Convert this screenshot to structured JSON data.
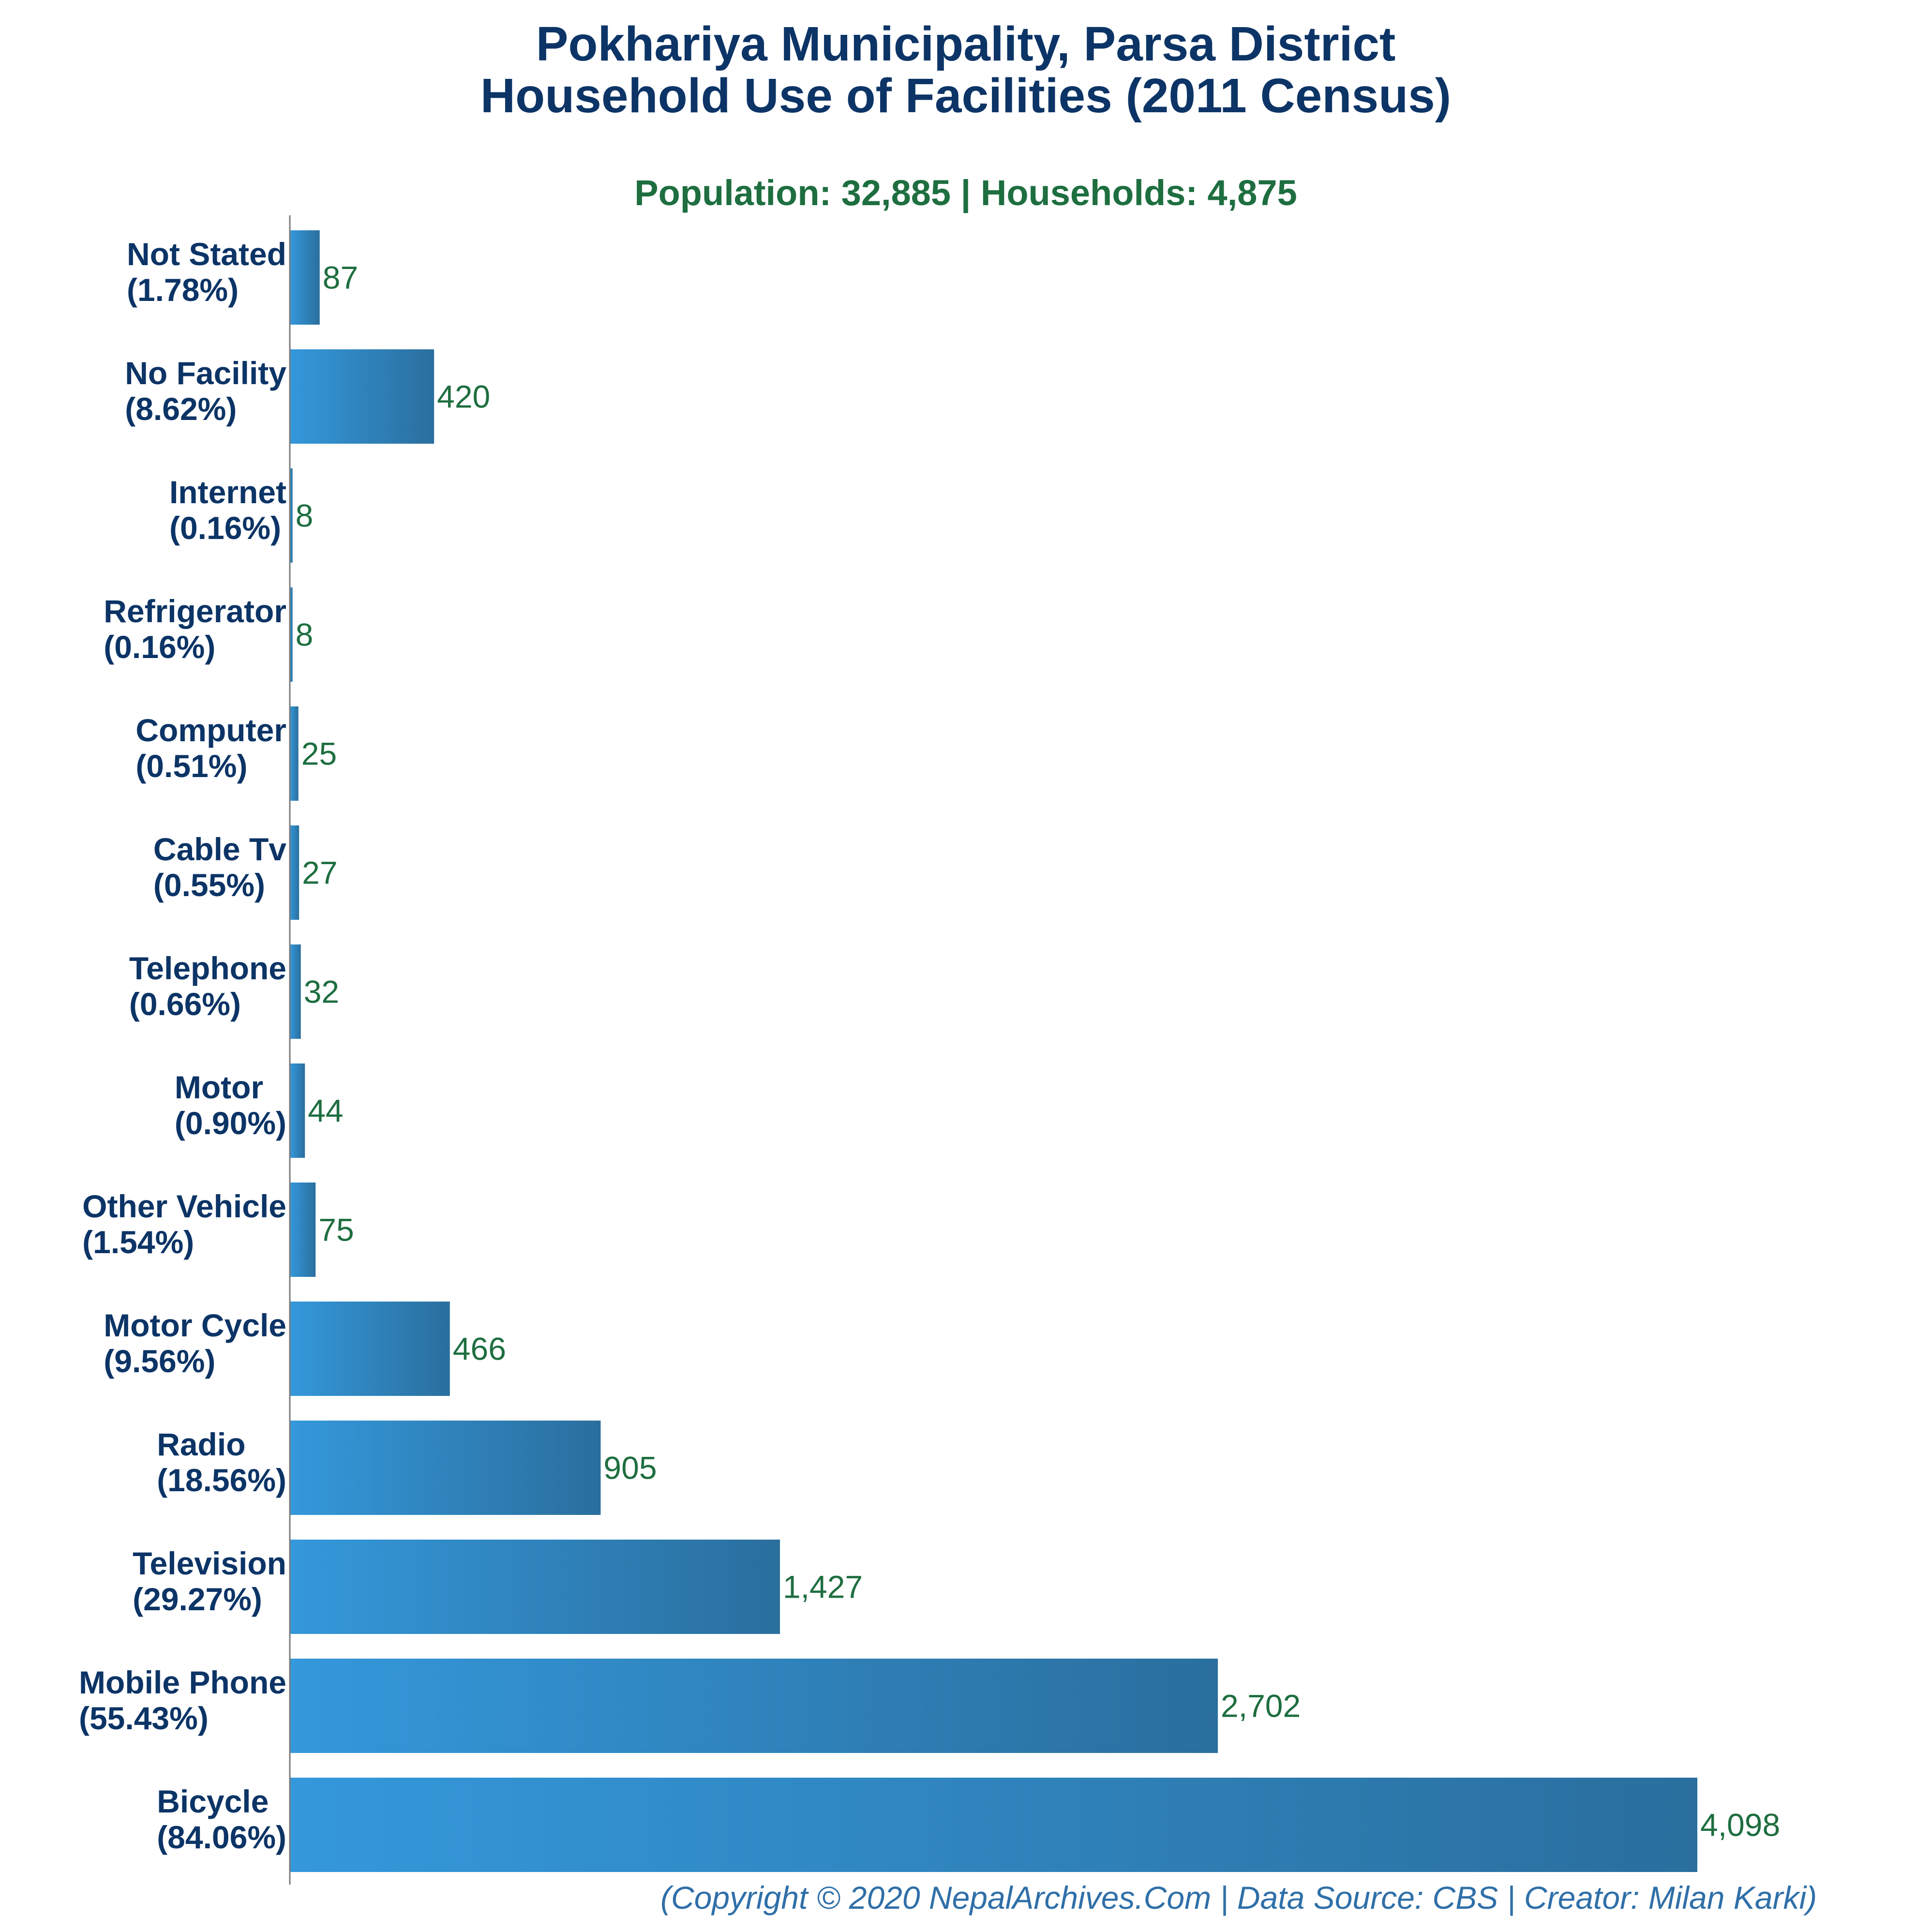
{
  "colors": {
    "title": "#0c3466",
    "subtitle": "#1e6e40",
    "value_labels": "#1e6e40",
    "category_labels": "#0c3466",
    "footer": "#2f6fa8",
    "bar_gradient_start": "#3498db",
    "bar_gradient_end": "#2a6f9e",
    "axis": "#7a7a7a"
  },
  "chart_data": {
    "type": "bar",
    "orientation": "horizontal",
    "title": [
      "Pokhariya Municipality, Parsa District",
      "Household Use of Facilities (2011 Census)"
    ],
    "subtitle": "Population: 32,885 | Households: 4,875",
    "categories": [
      {
        "name": "Not Stated",
        "pct": "(1.78%)"
      },
      {
        "name": "No Facility",
        "pct": "(8.62%)"
      },
      {
        "name": "Internet",
        "pct": "(0.16%)"
      },
      {
        "name": "Refrigerator",
        "pct": "(0.16%)"
      },
      {
        "name": "Computer",
        "pct": "(0.51%)"
      },
      {
        "name": "Cable Tv",
        "pct": "(0.55%)"
      },
      {
        "name": "Telephone",
        "pct": "(0.66%)"
      },
      {
        "name": "Motor",
        "pct": "(0.90%)"
      },
      {
        "name": "Other Vehicle",
        "pct": "(1.54%)"
      },
      {
        "name": "Motor Cycle",
        "pct": "(9.56%)"
      },
      {
        "name": "Radio",
        "pct": "(18.56%)"
      },
      {
        "name": "Television",
        "pct": "(29.27%)"
      },
      {
        "name": "Mobile Phone",
        "pct": "(55.43%)"
      },
      {
        "name": "Bicycle",
        "pct": "(84.06%)"
      }
    ],
    "values": [
      87,
      420,
      8,
      8,
      25,
      27,
      32,
      44,
      75,
      466,
      905,
      1427,
      2702,
      4098
    ],
    "value_labels": [
      "87",
      "420",
      "8",
      "8",
      "25",
      "27",
      "32",
      "44",
      "75",
      "466",
      "905",
      "1,427",
      "2,702",
      "4,098"
    ],
    "xlim": [
      0,
      4098
    ],
    "grid": false,
    "legend": "none",
    "footer": "(Copyright © 2020 NepalArchives.Com | Data Source: CBS | Creator: Milan Karki)"
  }
}
